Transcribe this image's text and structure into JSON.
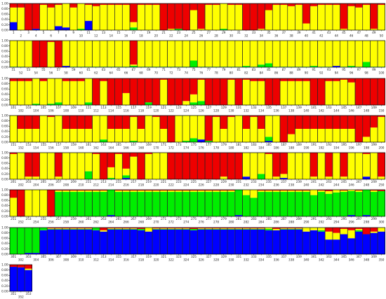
{
  "chart_data": {
    "type": "bar",
    "stacked": true,
    "normalized": true,
    "title": "",
    "xlabel": "",
    "ylabel": "",
    "ylim": [
      0,
      1
    ],
    "yticks": [
      "0.00",
      "0.20",
      "0.40",
      "0.60",
      "0.80",
      "1.00"
    ],
    "grid": false,
    "legend": "none",
    "n_individuals": 353,
    "individuals_per_row": 50,
    "series": [
      {
        "name": "",
        "color": "#0000ff"
      },
      {
        "name": "",
        "color": "#00ee00"
      },
      {
        "name": "",
        "color": "#ffff00"
      },
      {
        "name": "",
        "color": "#ee0000"
      }
    ],
    "row_defaults": [
      [
        0.0,
        0.0,
        0.95,
        0.05
      ],
      [
        0.0,
        0.02,
        0.98,
        0.0
      ],
      [
        0.0,
        0.0,
        0.9,
        0.1
      ],
      [
        0.0,
        0.0,
        0.5,
        0.5
      ],
      [
        0.0,
        0.0,
        0.1,
        0.9
      ],
      [
        0.0,
        0.92,
        0.05,
        0.03
      ],
      [
        0.93,
        0.02,
        0.02,
        0.03
      ],
      [
        0.88,
        0.0,
        0.0,
        0.12
      ]
    ],
    "overrides": {
      "1": [
        0.3,
        0.0,
        0.55,
        0.15
      ],
      "2": [
        0.0,
        0.0,
        0.85,
        0.15
      ],
      "3": [
        0.0,
        0.0,
        0.0,
        1.0
      ],
      "4": [
        0.05,
        0.0,
        0.0,
        0.95
      ],
      "5": [
        0.0,
        0.0,
        0.95,
        0.05
      ],
      "6": [
        0.0,
        0.0,
        0.85,
        0.15
      ],
      "7": [
        0.15,
        0.0,
        0.8,
        0.05
      ],
      "8": [
        0.1,
        0.0,
        0.9,
        0.0
      ],
      "9": [
        0.0,
        0.0,
        0.85,
        0.15
      ],
      "10": [
        0.0,
        0.05,
        0.95,
        0.0
      ],
      "11": [
        0.35,
        0.0,
        0.6,
        0.05
      ],
      "12": [
        0.0,
        0.0,
        0.9,
        0.1
      ],
      "17": [
        0.0,
        0.1,
        0.2,
        0.7
      ],
      "21": [
        0.0,
        0.0,
        0.0,
        1.0
      ],
      "22": [
        0.0,
        0.0,
        0.05,
        0.95
      ],
      "23": [
        0.0,
        0.05,
        0.0,
        0.95
      ],
      "24": [
        0.0,
        0.0,
        0.0,
        1.0
      ],
      "25": [
        0.0,
        0.0,
        0.75,
        0.25
      ],
      "26": [
        0.0,
        0.0,
        0.05,
        0.95
      ],
      "29": [
        0.0,
        0.05,
        0.95,
        0.0
      ],
      "32": [
        0.0,
        0.0,
        0.0,
        1.0
      ],
      "33": [
        0.0,
        0.0,
        0.0,
        1.0
      ],
      "34": [
        0.0,
        0.0,
        0.05,
        0.95
      ],
      "35": [
        0.0,
        0.0,
        0.75,
        0.25
      ],
      "38": [
        0.0,
        0.0,
        0.9,
        0.1
      ],
      "40": [
        0.0,
        0.0,
        0.25,
        0.75
      ],
      "41": [
        0.0,
        0.0,
        0.9,
        0.1
      ],
      "45": [
        0.0,
        0.0,
        0.05,
        0.95
      ],
      "46": [
        0.0,
        0.0,
        0.9,
        0.1
      ],
      "47": [
        0.0,
        0.0,
        0.85,
        0.15
      ],
      "49": [
        0.0,
        0.0,
        0.05,
        0.95
      ],
      "53": [
        0.0,
        0.0,
        1.0,
        0.0
      ],
      "54": [
        0.0,
        0.0,
        0.0,
        1.0
      ],
      "55": [
        0.0,
        0.0,
        0.0,
        1.0
      ],
      "56": [
        0.0,
        0.0,
        0.95,
        0.05
      ],
      "57": [
        0.0,
        0.0,
        0.0,
        1.0
      ],
      "58": [
        0.05,
        0.0,
        0.95,
        0.0
      ],
      "67": [
        0.0,
        0.05,
        0.05,
        0.9
      ],
      "75": [
        0.0,
        0.25,
        0.75,
        0.0
      ],
      "82": [
        0.0,
        0.05,
        0.95,
        0.0
      ],
      "84": [
        0.0,
        0.1,
        0.9,
        0.0
      ],
      "85": [
        0.0,
        0.15,
        0.85,
        0.0
      ],
      "91": [
        0.0,
        0.05,
        0.95,
        0.0
      ],
      "94": [
        0.05,
        0.0,
        0.95,
        0.0
      ],
      "96": [
        0.0,
        0.05,
        0.95,
        0.0
      ],
      "98": [
        0.0,
        0.2,
        0.8,
        0.0
      ],
      "104": [
        0.0,
        0.05,
        0.95,
        0.0
      ],
      "106": [
        0.0,
        0.05,
        0.95,
        0.0
      ],
      "107": [
        0.0,
        0.1,
        0.9,
        0.0
      ],
      "111": [
        0.0,
        0.1,
        0.9,
        0.0
      ],
      "112": [
        0.0,
        0.0,
        0.0,
        1.0
      ],
      "114": [
        0.0,
        0.0,
        0.0,
        1.0
      ],
      "115": [
        0.0,
        0.0,
        0.0,
        1.0
      ],
      "116": [
        0.0,
        0.0,
        0.45,
        0.55
      ],
      "117": [
        0.0,
        0.0,
        0.0,
        1.0
      ],
      "118": [
        0.0,
        0.0,
        0.0,
        1.0
      ],
      "119": [
        0.0,
        0.1,
        0.0,
        0.9
      ],
      "120": [
        0.0,
        0.0,
        0.0,
        1.0
      ],
      "121": [
        0.0,
        0.0,
        0.95,
        0.05
      ],
      "122": [
        0.0,
        0.0,
        0.0,
        1.0
      ],
      "123": [
        0.0,
        0.0,
        0.0,
        1.0
      ],
      "124": [
        0.0,
        0.0,
        0.15,
        0.85
      ],
      "125": [
        0.0,
        0.1,
        0.3,
        0.6
      ],
      "126": [
        0.0,
        0.15,
        0.8,
        0.05
      ],
      "127": [
        0.0,
        0.0,
        0.0,
        1.0
      ],
      "128": [
        0.0,
        0.0,
        0.0,
        1.0
      ],
      "129": [
        0.0,
        0.0,
        0.0,
        1.0
      ],
      "130": [
        0.0,
        0.0,
        0.95,
        0.05
      ],
      "131": [
        0.0,
        0.0,
        0.0,
        1.0
      ],
      "132": [
        0.0,
        0.0,
        0.95,
        0.05
      ],
      "135": [
        0.0,
        0.0,
        0.0,
        1.0
      ],
      "136": [
        0.0,
        0.0,
        0.0,
        1.0
      ],
      "141": [
        0.0,
        0.0,
        0.0,
        1.0
      ],
      "142": [
        0.0,
        0.0,
        0.0,
        1.0
      ],
      "145": [
        0.0,
        0.0,
        0.95,
        0.05
      ],
      "146": [
        0.0,
        0.0,
        0.85,
        0.15
      ],
      "147": [
        0.0,
        0.0,
        0.0,
        1.0
      ],
      "148": [
        0.0,
        0.0,
        0.0,
        1.0
      ],
      "149": [
        0.0,
        0.0,
        0.0,
        1.0
      ],
      "150": [
        0.0,
        0.0,
        0.0,
        1.0
      ],
      "151": [
        0.0,
        0.0,
        1.0,
        0.0
      ],
      "155": [
        0.0,
        0.0,
        1.0,
        0.0
      ],
      "156": [
        0.0,
        0.0,
        0.95,
        0.05
      ],
      "157": [
        0.0,
        0.0,
        1.0,
        0.0
      ],
      "162": [
        0.0,
        0.0,
        1.0,
        0.0
      ],
      "163": [
        0.0,
        0.1,
        0.9,
        0.0
      ],
      "167": [
        0.0,
        0.05,
        0.9,
        0.05
      ],
      "169": [
        0.0,
        0.0,
        1.0,
        0.0
      ],
      "170": [
        0.0,
        0.0,
        0.95,
        0.05
      ],
      "172": [
        0.0,
        0.0,
        0.0,
        1.0
      ],
      "173": [
        0.0,
        0.0,
        1.0,
        0.0
      ],
      "174": [
        0.0,
        0.05,
        0.95,
        0.0
      ],
      "175": [
        0.0,
        0.15,
        0.85,
        0.0
      ],
      "176": [
        0.1,
        0.0,
        0.9,
        0.0
      ],
      "177": [
        0.0,
        0.05,
        0.0,
        0.95
      ],
      "178": [
        0.0,
        0.0,
        0.95,
        0.05
      ],
      "180": [
        0.0,
        0.0,
        0.95,
        0.05
      ],
      "181": [
        0.0,
        0.0,
        1.0,
        0.0
      ],
      "183": [
        0.0,
        0.0,
        0.95,
        0.05
      ],
      "185": [
        0.05,
        0.15,
        0.8,
        0.0
      ],
      "186": [
        0.0,
        0.0,
        1.0,
        0.0
      ],
      "187": [
        0.0,
        0.0,
        0.0,
        1.0
      ],
      "188": [
        0.0,
        0.0,
        0.3,
        0.7
      ],
      "197": [
        0.0,
        0.0,
        0.0,
        1.0
      ],
      "198": [
        0.0,
        0.0,
        0.2,
        0.8
      ],
      "199": [
        0.0,
        0.0,
        0.55,
        0.45
      ],
      "200": [
        0.0,
        0.0,
        0.95,
        0.05
      ],
      "201": [
        0.0,
        0.0,
        0.95,
        0.05
      ],
      "202": [
        0.0,
        0.0,
        1.0,
        0.0
      ],
      "205": [
        0.0,
        0.0,
        1.0,
        0.0
      ],
      "206": [
        0.0,
        0.0,
        1.0,
        0.0
      ],
      "208": [
        0.0,
        0.0,
        1.0,
        0.0
      ],
      "209": [
        0.0,
        0.0,
        1.0,
        0.0
      ],
      "210": [
        0.0,
        0.0,
        1.0,
        0.0
      ],
      "211": [
        0.0,
        0.3,
        0.7,
        0.0
      ],
      "212": [
        0.0,
        0.0,
        0.95,
        0.05
      ],
      "213": [
        0.0,
        0.0,
        0.0,
        1.0
      ],
      "214": [
        0.0,
        0.05,
        0.4,
        0.55
      ],
      "215": [
        0.0,
        0.0,
        0.95,
        0.05
      ],
      "216": [
        0.05,
        0.1,
        0.25,
        0.6
      ],
      "217": [
        0.0,
        0.0,
        0.85,
        0.15
      ],
      "218": [
        0.0,
        0.0,
        0.0,
        1.0
      ],
      "219": [
        0.0,
        0.0,
        0.95,
        0.05
      ],
      "220": [
        0.0,
        0.0,
        1.0,
        0.0
      ],
      "221": [
        0.0,
        0.0,
        1.0,
        0.0
      ],
      "222": [
        0.0,
        0.0,
        0.0,
        1.0
      ],
      "223": [
        0.0,
        0.0,
        0.0,
        1.0
      ],
      "224": [
        0.0,
        0.0,
        0.0,
        1.0
      ],
      "225": [
        0.0,
        0.0,
        0.0,
        1.0
      ],
      "226": [
        0.0,
        0.0,
        0.0,
        1.0
      ],
      "227": [
        0.0,
        0.0,
        0.0,
        1.0
      ],
      "228": [
        0.0,
        0.0,
        0.0,
        1.0
      ],
      "230": [
        0.0,
        0.0,
        0.0,
        1.0
      ],
      "231": [
        0.0,
        0.0,
        0.0,
        1.0
      ],
      "232": [
        0.1,
        0.0,
        0.9,
        0.0
      ],
      "233": [
        0.0,
        0.0,
        1.0,
        0.0
      ],
      "234": [
        0.0,
        0.2,
        0.8,
        0.0
      ],
      "235": [
        0.0,
        0.0,
        0.95,
        0.05
      ],
      "237": [
        0.05,
        0.0,
        0.15,
        0.8
      ],
      "238": [
        0.0,
        0.0,
        1.0,
        0.0
      ],
      "239": [
        0.0,
        0.0,
        1.0,
        0.0
      ],
      "240": [
        0.0,
        0.0,
        1.0,
        0.0
      ],
      "242": [
        0.0,
        0.0,
        1.0,
        0.0
      ],
      "244": [
        0.0,
        0.0,
        1.0,
        0.0
      ],
      "246": [
        0.0,
        0.0,
        1.0,
        0.0
      ],
      "247": [
        0.0,
        0.0,
        1.0,
        0.0
      ],
      "248": [
        0.1,
        0.0,
        0.85,
        0.05
      ],
      "249": [
        0.0,
        0.0,
        1.0,
        0.0
      ],
      "251": [
        0.0,
        0.0,
        0.7,
        0.3
      ],
      "252": [
        0.0,
        0.0,
        0.0,
        1.0
      ],
      "253": [
        0.0,
        0.0,
        1.0,
        0.0
      ],
      "254": [
        0.0,
        0.0,
        1.0,
        0.0
      ],
      "255": [
        0.0,
        0.0,
        1.0,
        0.0
      ],
      "256": [
        0.0,
        0.0,
        0.0,
        1.0
      ],
      "264": [
        0.05,
        0.95,
        0.0,
        0.0
      ],
      "281": [
        0.05,
        0.95,
        0.0,
        0.0
      ],
      "282": [
        0.0,
        0.8,
        0.2,
        0.0
      ],
      "283": [
        0.0,
        0.7,
        0.3,
        0.0
      ],
      "291": [
        0.0,
        0.8,
        0.2,
        0.0
      ],
      "293": [
        0.0,
        0.85,
        0.1,
        0.05
      ],
      "294": [
        0.0,
        0.9,
        0.1,
        0.0
      ],
      "296": [
        0.05,
        0.9,
        0.05,
        0.0
      ],
      "298": [
        0.05,
        0.95,
        0.0,
        0.0
      ],
      "300": [
        0.0,
        0.95,
        0.0,
        0.05
      ],
      "301": [
        0.0,
        1.0,
        0.0,
        0.0
      ],
      "302": [
        0.0,
        1.0,
        0.0,
        0.0
      ],
      "303": [
        0.05,
        0.95,
        0.0,
        0.0
      ],
      "304": [
        0.05,
        0.95,
        0.0,
        0.0
      ],
      "305": [
        0.9,
        0.1,
        0.0,
        0.0
      ],
      "312": [
        0.9,
        0.1,
        0.0,
        0.0
      ],
      "313": [
        0.85,
        0.0,
        0.05,
        0.1
      ],
      "318": [
        0.9,
        0.05,
        0.0,
        0.05
      ],
      "319": [
        0.85,
        0.0,
        0.15,
        0.0
      ],
      "325": [
        0.9,
        0.05,
        0.0,
        0.05
      ],
      "335": [
        0.9,
        0.05,
        0.05,
        0.0
      ],
      "336": [
        0.9,
        0.0,
        0.05,
        0.05
      ],
      "340": [
        0.85,
        0.0,
        0.15,
        0.0
      ],
      "341": [
        0.9,
        0.0,
        0.1,
        0.0
      ],
      "342": [
        0.85,
        0.05,
        0.1,
        0.0
      ],
      "343": [
        0.55,
        0.0,
        0.3,
        0.15
      ],
      "344": [
        0.55,
        0.0,
        0.25,
        0.2
      ],
      "345": [
        0.75,
        0.0,
        0.2,
        0.05
      ],
      "346": [
        0.6,
        0.0,
        0.3,
        0.1
      ],
      "347": [
        0.85,
        0.05,
        0.05,
        0.05
      ],
      "348": [
        0.75,
        0.0,
        0.0,
        0.25
      ],
      "349": [
        0.8,
        0.0,
        0.05,
        0.15
      ],
      "350": [
        0.85,
        0.0,
        0.15,
        0.0
      ],
      "351": [
        0.92,
        0.0,
        0.0,
        0.08
      ],
      "352": [
        0.9,
        0.0,
        0.0,
        0.1
      ],
      "353": [
        0.8,
        0.0,
        0.05,
        0.15
      ]
    }
  }
}
